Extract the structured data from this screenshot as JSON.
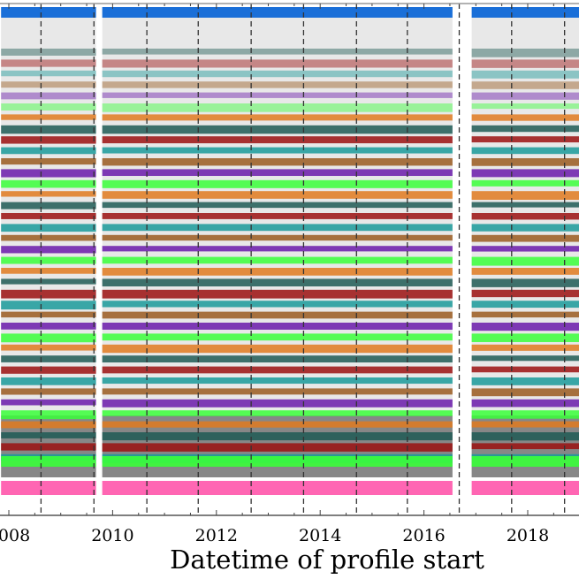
{
  "chart_data": {
    "type": "scatter",
    "xlabel": "Datetime of profile start",
    "ylabel": "",
    "x_ticks": [
      2008,
      2010,
      2012,
      2014,
      2016,
      2018
    ],
    "xlim": [
      2007.85,
      2019.2
    ],
    "grid": true,
    "deployment_boundaries": [
      2008.62,
      2009.64,
      2010.66,
      2011.65,
      2012.67,
      2013.68,
      2014.7,
      2015.68,
      2016.68,
      2017.69,
      2018.71
    ],
    "data_segments": [
      [
        2007.85,
        2009.68
      ],
      [
        2009.8,
        2016.55
      ],
      [
        2016.92,
        2019.2
      ]
    ],
    "series_colors": {
      "top_layer": "#1a6fd8",
      "bottom_layer": "#ff66b3",
      "background_points": "#000000",
      "layer_cycle": [
        "#1f5a55",
        "#9b1010",
        "#1a9a9a",
        "#9a5a20",
        "#6a1aaa",
        "#3aff3a",
        "#e07a20"
      ]
    }
  }
}
